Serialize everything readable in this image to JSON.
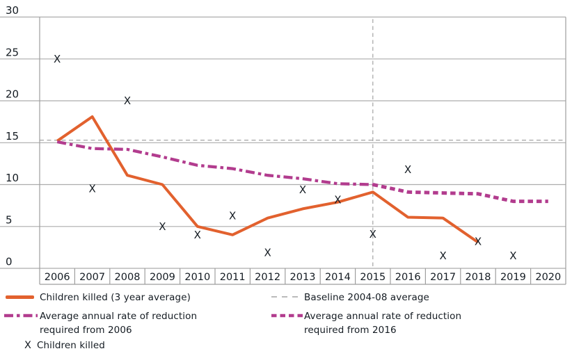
{
  "colors": {
    "children_killed": "#E2612E",
    "required_reduction": "#B23C8E",
    "baseline": "#A3A3A3",
    "grid": "#ACACAC",
    "axis": "#9E9E9E",
    "text": "#141B22"
  },
  "chart_data": {
    "type": "line",
    "title": "",
    "xlabel": "",
    "ylabel": "",
    "x": [
      2006,
      2007,
      2008,
      2009,
      2010,
      2011,
      2012,
      2013,
      2014,
      2015,
      2016,
      2017,
      2018,
      2019,
      2020
    ],
    "ylim": [
      0,
      30
    ],
    "yticks": [
      0,
      5,
      10,
      15,
      20,
      25,
      30
    ],
    "grid": "horizontal",
    "series": [
      {
        "name": "Children killed (3 year average)",
        "style": "solid",
        "color_key": "children_killed",
        "x": [
          2006,
          2007,
          2008,
          2009,
          2010,
          2011,
          2012,
          2013,
          2014,
          2015,
          2016,
          2017,
          2018
        ],
        "values": [
          15.2,
          18.1,
          11.1,
          10.0,
          5.0,
          4.0,
          6.0,
          7.1,
          7.9,
          9.1,
          6.1,
          6.0,
          3.1
        ]
      },
      {
        "name": "Average annual rate of reduction required from 2006",
        "style": "dashdot",
        "color_key": "required_reduction",
        "x": [
          2006,
          2007,
          2008,
          2009,
          2010,
          2011,
          2012,
          2013,
          2014,
          2015
        ],
        "values": [
          15.1,
          14.3,
          14.2,
          13.3,
          12.3,
          11.9,
          11.1,
          10.7,
          10.1,
          10.0
        ]
      },
      {
        "name": "Average annual rate of reduction required from 2016",
        "style": "dashed",
        "color_key": "required_reduction",
        "x": [
          2015,
          2016,
          2017,
          2018,
          2019,
          2020
        ],
        "values": [
          10.0,
          9.1,
          9.0,
          8.9,
          8.0,
          8.0
        ]
      },
      {
        "name": "Children killed",
        "style": "marker-x",
        "color_key": "text",
        "x": [
          2006,
          2007,
          2008,
          2009,
          2010,
          2011,
          2012,
          2013,
          2014,
          2015,
          2016,
          2017,
          2018,
          2019
        ],
        "values": [
          25.0,
          9.5,
          20.0,
          5.0,
          4.0,
          6.3,
          1.9,
          9.4,
          8.2,
          4.1,
          11.8,
          1.5,
          3.2,
          1.5
        ]
      }
    ],
    "baseline": {
      "label": "Baseline 2004-08 average",
      "value": 15.3
    },
    "vline": {
      "x": 2015
    },
    "legend_position": "bottom"
  },
  "legend": {
    "children_killed": "Children killed (3 year average)",
    "baseline": "Baseline 2004-08 average",
    "required_2006": "Average annual rate of reduction\nrequired from 2006",
    "required_2016": "Average annual rate of reduction\nrequired from 2016",
    "marker": "Children killed",
    "marker_glyph": "X"
  }
}
